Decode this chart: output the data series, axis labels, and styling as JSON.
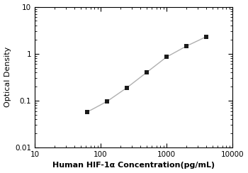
{
  "x_data": [
    62.5,
    125,
    250,
    500,
    1000,
    2000,
    4000
  ],
  "y_data": [
    0.057,
    0.096,
    0.188,
    0.4,
    0.85,
    1.45,
    2.3
  ],
  "xlim": [
    10,
    10000
  ],
  "ylim": [
    0.01,
    10
  ],
  "xlabel": "Human HIF-1α Concentration(pg/mL)",
  "ylabel": "Optical Density",
  "line_color": "#b0b0b0",
  "marker_color": "#1a1a1a",
  "marker": "s",
  "marker_size": 4.5,
  "line_width": 1.0,
  "xlabel_fontsize": 8,
  "ylabel_fontsize": 8,
  "tick_fontsize": 7.5,
  "ytick_labels": [
    "0.01",
    "0.1",
    "1",
    "10"
  ],
  "ytick_vals": [
    0.01,
    0.1,
    1,
    10
  ],
  "xtick_vals": [
    10,
    100,
    1000,
    10000
  ],
  "xtick_labels": [
    "10",
    "100",
    "1000",
    "10000"
  ]
}
